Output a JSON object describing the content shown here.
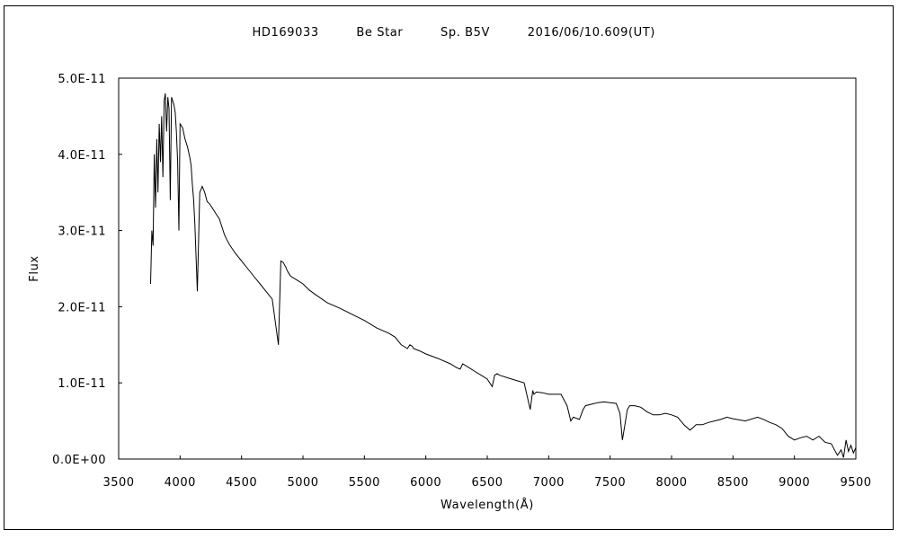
{
  "chart_data": {
    "type": "line",
    "title_parts": [
      "HD169033",
      "Be Star",
      "Sp. B5V",
      "2016/06/10.609(UT)"
    ],
    "xlabel": "Wavelength(Å)",
    "ylabel": "Flux",
    "xlim": [
      3500,
      9500
    ],
    "ylim": [
      0,
      5e-11
    ],
    "x_ticks": [
      3500,
      4000,
      4500,
      5000,
      5500,
      6000,
      6500,
      7000,
      7500,
      8000,
      8500,
      9000,
      9500
    ],
    "x_tick_labels": [
      "3500",
      "4000",
      "4500",
      "5000",
      "5500",
      "6000",
      "6500",
      "7000",
      "7500",
      "8000",
      "8500",
      "9000",
      "9500"
    ],
    "y_ticks": [
      0,
      1e-11,
      2e-11,
      3e-11,
      4e-11,
      5e-11
    ],
    "y_tick_labels": [
      "0.0E+00",
      "1.0E-11",
      "2.0E-11",
      "3.0E-11",
      "4.0E-11",
      "5.0E-11"
    ],
    "grid": false,
    "line_color": "#000000",
    "series": [
      {
        "x": [
          3760,
          3770,
          3780,
          3790,
          3800,
          3810,
          3820,
          3830,
          3840,
          3850,
          3860,
          3870,
          3880,
          3890,
          3900,
          3910,
          3920,
          3930,
          3940,
          3950,
          3960,
          3970,
          3980,
          3990,
          4000,
          4020,
          4040,
          4060,
          4080,
          4090,
          4100,
          4110,
          4120,
          4140,
          4160,
          4180,
          4200,
          4220,
          4240,
          4260,
          4280,
          4300,
          4320,
          4330,
          4340,
          4350,
          4360,
          4380,
          4400,
          4450,
          4500,
          4550,
          4600,
          4650,
          4700,
          4750,
          4800,
          4820,
          4840,
          4850,
          4860,
          4870,
          4880,
          4900,
          4950,
          5000,
          5050,
          5100,
          5200,
          5300,
          5400,
          5500,
          5600,
          5700,
          5750,
          5800,
          5850,
          5870,
          5890,
          5900,
          5950,
          6000,
          6100,
          6200,
          6250,
          6280,
          6300,
          6350,
          6400,
          6450,
          6500,
          6540,
          6560,
          6580,
          6600,
          6700,
          6800,
          6850,
          6870,
          6880,
          6900,
          6950,
          7000,
          7100,
          7150,
          7180,
          7200,
          7250,
          7280,
          7300,
          7350,
          7400,
          7450,
          7500,
          7550,
          7580,
          7600,
          7620,
          7640,
          7660,
          7700,
          7750,
          7800,
          7850,
          7900,
          7950,
          8000,
          8050,
          8100,
          8150,
          8180,
          8200,
          8250,
          8300,
          8350,
          8400,
          8450,
          8500,
          8600,
          8700,
          8750,
          8800,
          8850,
          8900,
          8950,
          9000,
          9050,
          9100,
          9150,
          9200,
          9250,
          9300,
          9350,
          9380,
          9400,
          9420,
          9440,
          9460,
          9480,
          9500
        ],
        "y": [
          2.3e-11,
          3e-11,
          2.8e-11,
          4e-11,
          3.3e-11,
          4.2e-11,
          3.5e-11,
          4.4e-11,
          3.9e-11,
          4.5e-11,
          3.7e-11,
          4.7e-11,
          4.8e-11,
          4.3e-11,
          4.75e-11,
          4.6e-11,
          3.4e-11,
          4.75e-11,
          4.7e-11,
          4.65e-11,
          4.55e-11,
          4.3e-11,
          3.9e-11,
          3e-11,
          4.4e-11,
          4.35e-11,
          4.2e-11,
          4.1e-11,
          3.95e-11,
          3.85e-11,
          3.6e-11,
          3.4e-11,
          3.1e-11,
          2.2e-11,
          3.5e-11,
          3.58e-11,
          3.5e-11,
          3.38e-11,
          3.35e-11,
          3.3e-11,
          3.25e-11,
          3.2e-11,
          3.15e-11,
          3.1e-11,
          3.05e-11,
          3e-11,
          2.95e-11,
          2.88e-11,
          2.82e-11,
          2.7e-11,
          2.6e-11,
          2.5e-11,
          2.4e-11,
          2.3e-11,
          2.2e-11,
          2.1e-11,
          1.5e-11,
          2.6e-11,
          2.58e-11,
          2.55e-11,
          2.52e-11,
          2.48e-11,
          2.45e-11,
          2.4e-11,
          2.35e-11,
          2.3e-11,
          2.22e-11,
          2.16e-11,
          2.05e-11,
          1.98e-11,
          1.9e-11,
          1.82e-11,
          1.72e-11,
          1.65e-11,
          1.6e-11,
          1.5e-11,
          1.45e-11,
          1.5e-11,
          1.48e-11,
          1.45e-11,
          1.42e-11,
          1.38e-11,
          1.32e-11,
          1.25e-11,
          1.2e-11,
          1.18e-11,
          1.25e-11,
          1.2e-11,
          1.15e-11,
          1.1e-11,
          1.05e-11,
          9.5e-12,
          1.1e-11,
          1.12e-11,
          1.1e-11,
          1.05e-11,
          1e-11,
          6.5e-12,
          9e-12,
          8.5e-12,
          8.8e-12,
          8.7e-12,
          8.5e-12,
          8.5e-12,
          7e-12,
          5e-12,
          5.5e-12,
          5.2e-12,
          6.5e-12,
          7e-12,
          7.2e-12,
          7.4e-12,
          7.5e-12,
          7.4e-12,
          7.3e-12,
          6e-12,
          2.5e-12,
          4.5e-12,
          6.5e-12,
          7e-12,
          7e-12,
          6.8e-12,
          6.2e-12,
          5.8e-12,
          5.8e-12,
          6e-12,
          5.8e-12,
          5.5e-12,
          4.5e-12,
          3.8e-12,
          4.2e-12,
          4.5e-12,
          4.5e-12,
          4.8e-12,
          5e-12,
          5.2e-12,
          5.5e-12,
          5.3e-12,
          5e-12,
          5.5e-12,
          5.2e-12,
          4.8e-12,
          4.5e-12,
          4e-12,
          3e-12,
          2.5e-12,
          2.8e-12,
          3e-12,
          2.5e-12,
          3e-12,
          2.2e-12,
          2e-12,
          5e-13,
          1.2e-12,
          2e-13,
          2.5e-12,
          1e-12,
          1.8e-12,
          8e-13,
          1.5e-12
        ]
      }
    ]
  }
}
